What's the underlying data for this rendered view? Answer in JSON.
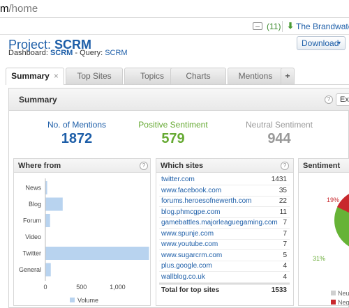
{
  "browser": {
    "url_prefix": "m",
    "url_path": "/home"
  },
  "topbar": {
    "message_count": "(11)",
    "brand_link": "The Brandwatch"
  },
  "project": {
    "title_prefix": "Project:",
    "name": "SCRM",
    "dashboard_label": "Dashboard:",
    "dashboard_name": "SCRM",
    "query_label": "- Query:",
    "query_name": "SCRM"
  },
  "download": {
    "label": "Download",
    "caret": "▾"
  },
  "tabs": [
    {
      "label": "Summary",
      "active": true,
      "close": "×"
    },
    {
      "label": "Top Sites"
    },
    {
      "label": "Topics"
    },
    {
      "label": "Charts"
    },
    {
      "label": "Mentions"
    },
    {
      "label": "+"
    }
  ],
  "summary": {
    "title": "Summary",
    "help": "?",
    "export_label": "Exp",
    "stats": [
      {
        "label": "No. of Mentions",
        "value": "1872",
        "color": "#1d5ea8"
      },
      {
        "label": "Positive Sentiment",
        "value": "579",
        "color": "#66aa33"
      },
      {
        "label": "Neutral Sentiment",
        "value": "944",
        "color": "#999999"
      }
    ]
  },
  "where_from": {
    "title": "Where from",
    "help": "?",
    "legend": "Volume",
    "bar_color": "#b8d3ef"
  },
  "chart_data": {
    "type": "bar",
    "orientation": "horizontal",
    "categories": [
      "News",
      "Blog",
      "Forum",
      "Video",
      "Twitter",
      "General"
    ],
    "values": [
      20,
      235,
      60,
      0,
      1431,
      70
    ],
    "xlim": [
      0,
      1431
    ],
    "xticks": [
      "0",
      "500",
      "1,000"
    ],
    "xtick_values": [
      0,
      500,
      1000
    ],
    "legend": "Volume",
    "grid": false
  },
  "which_sites": {
    "title": "Which sites",
    "help": "?",
    "rows": [
      {
        "site": "twitter.com",
        "count": "1431"
      },
      {
        "site": "www.facebook.com",
        "count": "35"
      },
      {
        "site": "forums.heroesofnewerth.com",
        "count": "22"
      },
      {
        "site": "blog.phmcgpe.com",
        "count": "11"
      },
      {
        "site": "gamebattles.majorleaguegaming.com",
        "count": "7"
      },
      {
        "site": "www.spunje.com",
        "count": "7"
      },
      {
        "site": "www.youtube.com",
        "count": "7"
      },
      {
        "site": "www.sugarcrm.com",
        "count": "5"
      },
      {
        "site": "plus.google.com",
        "count": "4"
      },
      {
        "site": "wallblog.co.uk",
        "count": "4"
      }
    ],
    "total_label": "Total for top sites",
    "total": "1533"
  },
  "sentiment": {
    "title": "Sentiment",
    "negative_pct": "19%",
    "positive_pct": "31%",
    "legend": [
      "Neu",
      "Neg"
    ],
    "colors": {
      "positive": "#66b336",
      "negative": "#c8282d",
      "neutral": "#cfcfcf"
    }
  }
}
